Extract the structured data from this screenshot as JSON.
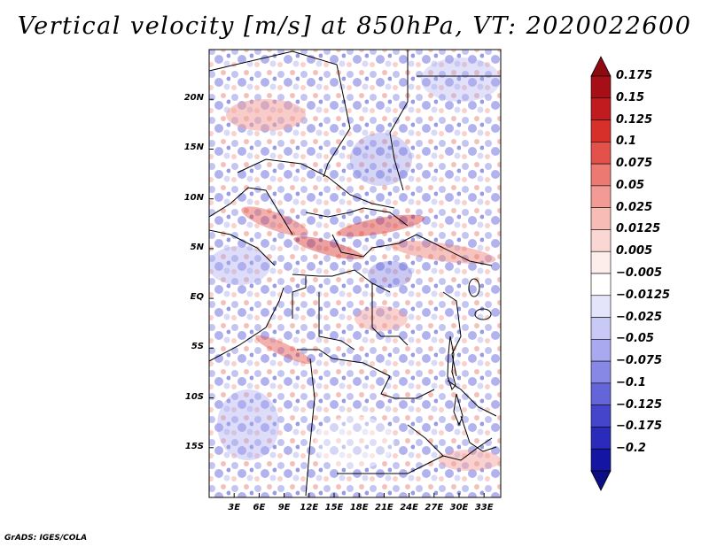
{
  "title": "Vertical velocity [m/s] at 850hPa, VT: 2020022600",
  "credit": "GrADS: IGES/COLA",
  "map": {
    "lon_range": [
      0,
      35
    ],
    "lat_range": [
      -20,
      25
    ],
    "lat_ticks": [
      {
        "value": 20,
        "label": "20N"
      },
      {
        "value": 15,
        "label": "15N"
      },
      {
        "value": 10,
        "label": "10N"
      },
      {
        "value": 5,
        "label": "5N"
      },
      {
        "value": 0,
        "label": "EQ"
      },
      {
        "value": -5,
        "label": "5S"
      },
      {
        "value": -10,
        "label": "10S"
      },
      {
        "value": -15,
        "label": "15S"
      }
    ],
    "lon_ticks": [
      {
        "value": 3,
        "label": "3E"
      },
      {
        "value": 6,
        "label": "6E"
      },
      {
        "value": 9,
        "label": "9E"
      },
      {
        "value": 12,
        "label": "12E"
      },
      {
        "value": 15,
        "label": "15E"
      },
      {
        "value": 18,
        "label": "18E"
      },
      {
        "value": 21,
        "label": "21E"
      },
      {
        "value": 24,
        "label": "24E"
      },
      {
        "value": 27,
        "label": "27E"
      },
      {
        "value": 30,
        "label": "30E"
      },
      {
        "value": 33,
        "label": "33E"
      }
    ]
  },
  "colorbar": {
    "levels": [
      {
        "label": "0.175",
        "color": "#a50f15"
      },
      {
        "label": "0.15",
        "color": "#c11a1f"
      },
      {
        "label": "0.125",
        "color": "#d7302b"
      },
      {
        "label": "0.1",
        "color": "#e3514a"
      },
      {
        "label": "0.075",
        "color": "#ec7a72"
      },
      {
        "label": "0.05",
        "color": "#f29b94"
      },
      {
        "label": "0.025",
        "color": "#f7bcb6"
      },
      {
        "label": "0.0125",
        "color": "#fbd7d3"
      },
      {
        "label": "0.005",
        "color": "#fdeeec"
      },
      {
        "label": "-0.005",
        "color": "#ffffff"
      },
      {
        "label": "-0.0125",
        "color": "#e4e4fb"
      },
      {
        "label": "-0.025",
        "color": "#c9c9f6"
      },
      {
        "label": "-0.05",
        "color": "#a9a9f0"
      },
      {
        "label": "-0.075",
        "color": "#8787e6"
      },
      {
        "label": "-0.1",
        "color": "#6565da"
      },
      {
        "label": "-0.125",
        "color": "#4545cc"
      },
      {
        "label": "-0.175",
        "color": "#2a2abb"
      },
      {
        "label": "-0.2",
        "color": "#1515a4"
      }
    ],
    "top_arrow_color": "#8c0a10",
    "bottom_arrow_color": "#0d0d85"
  }
}
